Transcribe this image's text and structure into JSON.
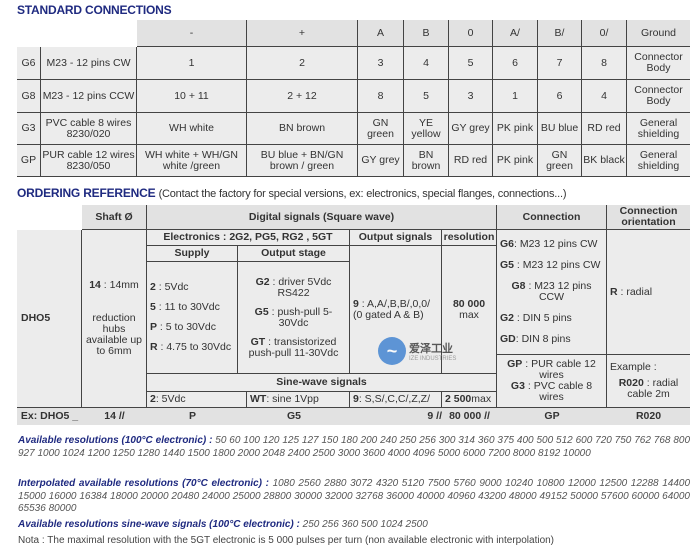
{
  "standard": {
    "title": "STANDARD CONNECTIONS",
    "headers": [
      "-",
      "+",
      "A",
      "B",
      "0",
      "A/",
      "B/",
      "0/",
      "Ground"
    ],
    "rows": [
      {
        "code": "G6",
        "desc": "M23 - 12 pins CW",
        "cells": [
          "1",
          "2",
          "3",
          "4",
          "5",
          "6",
          "7",
          "8",
          "Connector Body"
        ]
      },
      {
        "code": "G8",
        "desc": "M23 - 12 pins CCW",
        "cells": [
          "10 + 11",
          "2 + 12",
          "8",
          "5",
          "3",
          "1",
          "6",
          "4",
          "Connector Body"
        ]
      },
      {
        "code": "G3",
        "desc": "PVC cable 8 wires 8230/020",
        "cells": [
          "WH white",
          "BN brown",
          "GN green",
          "YE yellow",
          "GY grey",
          "PK pink",
          "BU blue",
          "RD red",
          "General shielding"
        ]
      },
      {
        "code": "GP",
        "desc": "PUR cable 12 wires 8230/050",
        "cells": [
          "WH white + WH/GN white /green",
          "BU blue + BN/GN brown / green",
          "GY grey",
          "BN brown",
          "RD red",
          "PK pink",
          "GN green",
          "BK black",
          "General shielding"
        ]
      }
    ]
  },
  "ordering": {
    "title": "ORDERING REFERENCE",
    "subtitle": "(Contact the factory for special versions, ex: electronics, special flanges, connections...)",
    "h_shaft": "Shaft Ø",
    "h_digital": "Digital signals (Square wave)",
    "h_connection": "Connection",
    "h_orientation": "Connection orientation",
    "h_electronics": "Electronics : 2G2, PG5, RG2 , 5GT",
    "h_output_signals": "Output signals",
    "h_resolution": "resolution",
    "h_supply": "Supply",
    "h_output_stage": "Output stage",
    "model": "DHO5",
    "shaft": {
      "code": "14",
      "value": " : 14mm",
      "note": "reduction hubs available up to 6mm"
    },
    "supply": [
      {
        "code": "2",
        "text": " : 5Vdc"
      },
      {
        "code": "5",
        "text": " : 11 to 30Vdc"
      },
      {
        "code": "P",
        "text": " : 5 to 30Vdc"
      },
      {
        "code": "R",
        "text": " : 4.75 to 30Vdc"
      }
    ],
    "output_stage": [
      {
        "code": "G2",
        "text": " : driver 5Vdc RS422"
      },
      {
        "code": "G5",
        "text": " : push-pull 5-30Vdc"
      },
      {
        "code": "GT",
        "text": " : transistorized push-pull 11-30Vdc"
      }
    ],
    "output_signals": {
      "code": "9",
      "text": " : A,A/,B,B/,0,0/ (0 gated A & B)"
    },
    "resolution": {
      "value": "80 000",
      "note": "max"
    },
    "connection": [
      {
        "code": "G6",
        "text": ": M23 12 pins CW"
      },
      {
        "code": "G5",
        "text": " : M23 12 pins CW"
      },
      {
        "code": "G8",
        "text": " : M23 12 pins CCW"
      },
      {
        "code": "G2",
        "text": " : DIN 5 pins"
      },
      {
        "code": "GD",
        "text": ": DIN 8 pins"
      }
    ],
    "connection_cable": [
      {
        "code": "GP",
        "text": " : PUR cable 12 wires"
      },
      {
        "code": "G3",
        "text": " : PVC cable 8 wires"
      }
    ],
    "orientation": {
      "code": "R",
      "text": " : radial"
    },
    "orientation_example": {
      "label": "Example :",
      "code": "R020",
      "text": " : radial cable 2m"
    },
    "sine_header": "Sine-wave signals",
    "sine": {
      "supply_code": "2",
      "supply_text": ": 5Vdc",
      "stage_code": "WT",
      "stage_text": ": sine 1Vpp",
      "signals_code": "9",
      "signals_text": ": S,S/,C,C/,Z,Z/",
      "res_value": "2 500",
      "res_text": " max"
    },
    "example": [
      "Ex: DHO5 _",
      "14   //",
      "P",
      "G5",
      "9      //",
      "80 000 //",
      "GP",
      "R020"
    ],
    "watermark": {
      "cn": "爱泽工业",
      "en": "IZE INDUSTRIES"
    }
  },
  "resolutions": {
    "standard_label": "Available resolutions (100°C electronic) :",
    "standard": "50 60 100 120 125 127 150 180 200 240 250 256 300 314 360 375 400 500 512 600 720 750 762 768 800 927 1000 1024 1200 1250 1280 1440 1500 1800 2000 2048 2400 2500 3000 3600 4000 4096 5000 6000 7200 8000 8192 10000",
    "interpolated_label": "Interpolated available resolutions (70°C electronic) :",
    "interpolated": "1080 2560 2880 3072 4320 5120 7500 5760 9000 10240 10800 12000 12500 12288 14400 15000 16000 16384 18000 20000 20480 24000 25000 28800 30000 32000 32768 36000 40000 40960 43200 48000 49152 50000 57600 60000 64000 65536 80000",
    "sine_label": "Available resolutions sine-wave signals (100°C electronic) :",
    "sine": "250 256 360 500 1024 2500",
    "nota": "Nota : The maximal resolution with the 5GT electronic is 5 000 pulses per turn (non available electronic with interpolation)"
  }
}
